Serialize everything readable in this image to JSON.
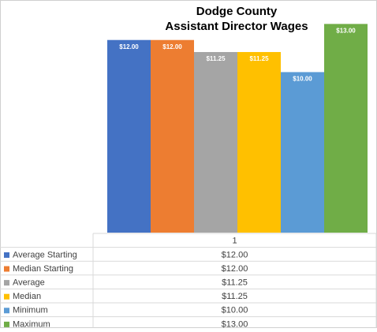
{
  "chart_data": {
    "type": "bar",
    "title": "Dodge County",
    "subtitle": "Assistant Director Wages",
    "categories": [
      "1"
    ],
    "ylim": [
      0,
      14
    ],
    "series": [
      {
        "name": "Average Starting",
        "color": "#4472c4",
        "values": [
          12
        ],
        "value_labels": [
          "$12.00"
        ]
      },
      {
        "name": "Median Starting",
        "color": "#ed7d31",
        "values": [
          12
        ],
        "value_labels": [
          "$12.00"
        ]
      },
      {
        "name": "Average",
        "color": "#a5a5a5",
        "values": [
          11.25
        ],
        "value_labels": [
          "$11.25"
        ]
      },
      {
        "name": "Median",
        "color": "#ffc000",
        "values": [
          11.25
        ],
        "value_labels": [
          "$11.25"
        ]
      },
      {
        "name": "Minimum",
        "color": "#5b9bd5",
        "values": [
          10
        ],
        "value_labels": [
          "$10.00"
        ]
      },
      {
        "name": "Maximum",
        "color": "#70ad47",
        "values": [
          13
        ],
        "value_labels": [
          "$13.00"
        ]
      }
    ]
  }
}
